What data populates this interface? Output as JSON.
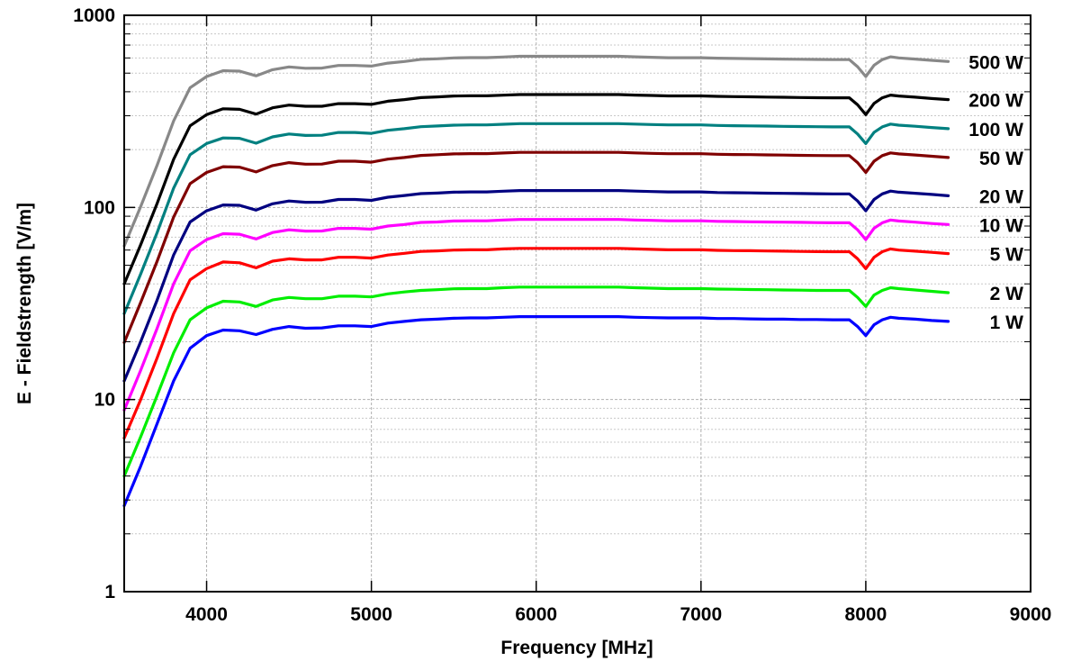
{
  "chart_data": {
    "type": "line",
    "title": "",
    "xlabel": "Frequency [MHz]",
    "ylabel": "E - Fieldstrength [V/m]",
    "xlim": [
      3500,
      9000
    ],
    "ylim": [
      1,
      1000
    ],
    "yscale": "log",
    "grid": true,
    "legend": "labels placed at right end of each line",
    "x_ticks": [
      4000,
      5000,
      6000,
      7000,
      8000,
      9000
    ],
    "x_tick_labels": [
      "4000",
      "5000",
      "6000",
      "7000",
      "8000",
      "9000"
    ],
    "y_ticks": [
      1,
      10,
      100,
      1000
    ],
    "y_tick_labels": [
      "1",
      "10",
      "100",
      "1000"
    ],
    "x": [
      3500,
      3600,
      3700,
      3800,
      3900,
      4000,
      4100,
      4200,
      4300,
      4400,
      4500,
      4600,
      4700,
      4800,
      4900,
      5000,
      5100,
      5200,
      5300,
      5400,
      5500,
      5600,
      5700,
      5800,
      5900,
      6000,
      6100,
      6200,
      6300,
      6400,
      6500,
      6600,
      6700,
      6800,
      6900,
      7000,
      7100,
      7200,
      7300,
      7400,
      7500,
      7600,
      7700,
      7800,
      7900,
      7950,
      8000,
      8050,
      8100,
      8150,
      8200,
      8300,
      8400,
      8500
    ],
    "series": [
      {
        "name": "1 W",
        "color": "#0000ff",
        "values": [
          2.8,
          4.5,
          7.5,
          12.5,
          18.5,
          21.5,
          23,
          22.8,
          21.8,
          23.2,
          24,
          23.5,
          23.6,
          24.2,
          24.2,
          24,
          25,
          25.5,
          26,
          26.2,
          26.5,
          26.6,
          26.6,
          26.8,
          27,
          27,
          27,
          27,
          27,
          27,
          27,
          26.8,
          26.7,
          26.6,
          26.6,
          26.6,
          26.4,
          26.4,
          26.3,
          26.2,
          26.2,
          26.1,
          26.1,
          26,
          26,
          24,
          21.5,
          24.5,
          26,
          26.8,
          26.5,
          26.2,
          25.8,
          25.5
        ]
      },
      {
        "name": "2 W",
        "color": "#00ee00",
        "values": [
          4,
          6.4,
          10.5,
          17.5,
          26,
          30,
          32.5,
          32.2,
          30.5,
          33,
          34,
          33.5,
          33.5,
          34.5,
          34.5,
          34.2,
          35.5,
          36.3,
          37,
          37.3,
          37.7,
          37.8,
          37.8,
          38.2,
          38.5,
          38.5,
          38.5,
          38.5,
          38.5,
          38.5,
          38.5,
          38.2,
          38,
          37.8,
          37.8,
          37.8,
          37.6,
          37.5,
          37.4,
          37.3,
          37.2,
          37.1,
          37,
          37,
          37,
          34,
          30.5,
          35,
          37,
          38.2,
          37.8,
          37.2,
          36.6,
          36
        ]
      },
      {
        "name": "5 W",
        "color": "#ff0000",
        "values": [
          6.3,
          10,
          16.5,
          28,
          42,
          48,
          52,
          51.5,
          48.5,
          52.5,
          54,
          53.3,
          53.3,
          55,
          55,
          54.5,
          56.5,
          57.7,
          59,
          59.4,
          60,
          60.2,
          60.2,
          60.8,
          61.2,
          61.2,
          61.2,
          61.2,
          61.2,
          61.2,
          61.2,
          60.8,
          60.5,
          60.2,
          60.2,
          60.2,
          59.8,
          59.6,
          59.5,
          59.3,
          59.2,
          59,
          58.9,
          58.8,
          58.8,
          54,
          48,
          55,
          58.8,
          60.8,
          60,
          59.2,
          58.4,
          57.5
        ]
      },
      {
        "name": "10 W",
        "color": "#ff00ff",
        "values": [
          8.8,
          14.2,
          23.5,
          40,
          59.5,
          68,
          73,
          72.5,
          68.5,
          74,
          76.5,
          75.3,
          75.4,
          77.8,
          77.8,
          77,
          80,
          81.5,
          83.5,
          84,
          85,
          85.2,
          85.2,
          86,
          86.6,
          86.6,
          86.6,
          86.6,
          86.6,
          86.6,
          86.6,
          86,
          85.6,
          85.2,
          85.2,
          85.2,
          84.6,
          84.4,
          84.2,
          84,
          83.8,
          83.6,
          83.4,
          83.2,
          83.2,
          76.5,
          68,
          78,
          83.2,
          86,
          85,
          83.8,
          82.5,
          81.5
        ]
      },
      {
        "name": "20 W",
        "color": "#000080",
        "values": [
          12.5,
          20,
          33,
          56.5,
          84,
          96,
          103,
          102.5,
          96.8,
          104.5,
          108,
          106.4,
          106.5,
          110,
          110,
          108.8,
          113,
          115.3,
          118,
          118.8,
          120,
          120.4,
          120.4,
          121.5,
          122.4,
          122.4,
          122.4,
          122.4,
          122.4,
          122.4,
          122.4,
          121.6,
          121,
          120.4,
          120.4,
          120.4,
          119.6,
          119.3,
          119,
          118.7,
          118.4,
          118.1,
          117.9,
          117.6,
          117.6,
          108,
          96,
          110,
          117.6,
          121.6,
          120,
          118.5,
          116.8,
          115
        ]
      },
      {
        "name": "50 W",
        "color": "#800000",
        "values": [
          19.8,
          32,
          52.5,
          89,
          133,
          152,
          163,
          162,
          153,
          165,
          171,
          168,
          168.2,
          174,
          174,
          172,
          178.5,
          182,
          186.5,
          188,
          190,
          190.5,
          190.5,
          192,
          193.5,
          193.5,
          193.5,
          193.5,
          193.5,
          193.5,
          193.5,
          192.2,
          191.2,
          190.3,
          190.3,
          190.3,
          189.2,
          188.6,
          188.2,
          187.6,
          187.2,
          186.7,
          186.3,
          186,
          186,
          171,
          152,
          174,
          186,
          192.2,
          190,
          187.4,
          184.6,
          182
        ]
      },
      {
        "name": "100 W",
        "color": "#008080",
        "values": [
          28,
          45,
          74,
          126,
          188,
          215,
          230,
          229,
          216,
          233,
          241,
          237,
          237.5,
          245.5,
          245.5,
          243,
          252,
          257,
          263,
          265.5,
          268,
          269,
          269,
          271,
          273,
          273,
          273,
          273,
          273,
          273,
          273,
          271.5,
          270,
          268.8,
          268.8,
          268.8,
          267,
          266.3,
          265.6,
          265,
          264.3,
          263.6,
          263,
          262.5,
          262.5,
          241,
          215,
          246,
          262.5,
          271.5,
          268,
          264.5,
          260.5,
          257
        ]
      },
      {
        "name": "200 W",
        "color": "#000000",
        "values": [
          40,
          64,
          105,
          178,
          266,
          304,
          326,
          324,
          306,
          330,
          341,
          336,
          336,
          347,
          347,
          344,
          357,
          364,
          373,
          376,
          380,
          381,
          381,
          384,
          387,
          387,
          387,
          387,
          387,
          387,
          387,
          384.5,
          382.5,
          380.6,
          380.6,
          380.6,
          378.4,
          377.3,
          376.4,
          375.3,
          374.4,
          373.4,
          372.6,
          372,
          372,
          342,
          304,
          348,
          372,
          384.5,
          380,
          374.8,
          369,
          364
        ]
      },
      {
        "name": "500 W",
        "color": "#888888",
        "values": [
          63,
          101,
          166,
          282,
          420,
          480,
          515,
          512,
          484,
          521,
          539,
          530,
          531,
          548,
          548,
          544,
          564,
          575,
          590,
          594,
          600,
          602,
          602,
          607,
          612,
          612,
          612,
          612,
          612,
          612,
          612,
          608,
          604.6,
          601.6,
          601.6,
          601.6,
          598,
          596.3,
          595,
          593.2,
          591.8,
          590.3,
          589,
          588,
          588,
          540,
          480,
          550,
          588,
          608,
          600,
          592,
          583,
          575
        ]
      }
    ]
  }
}
